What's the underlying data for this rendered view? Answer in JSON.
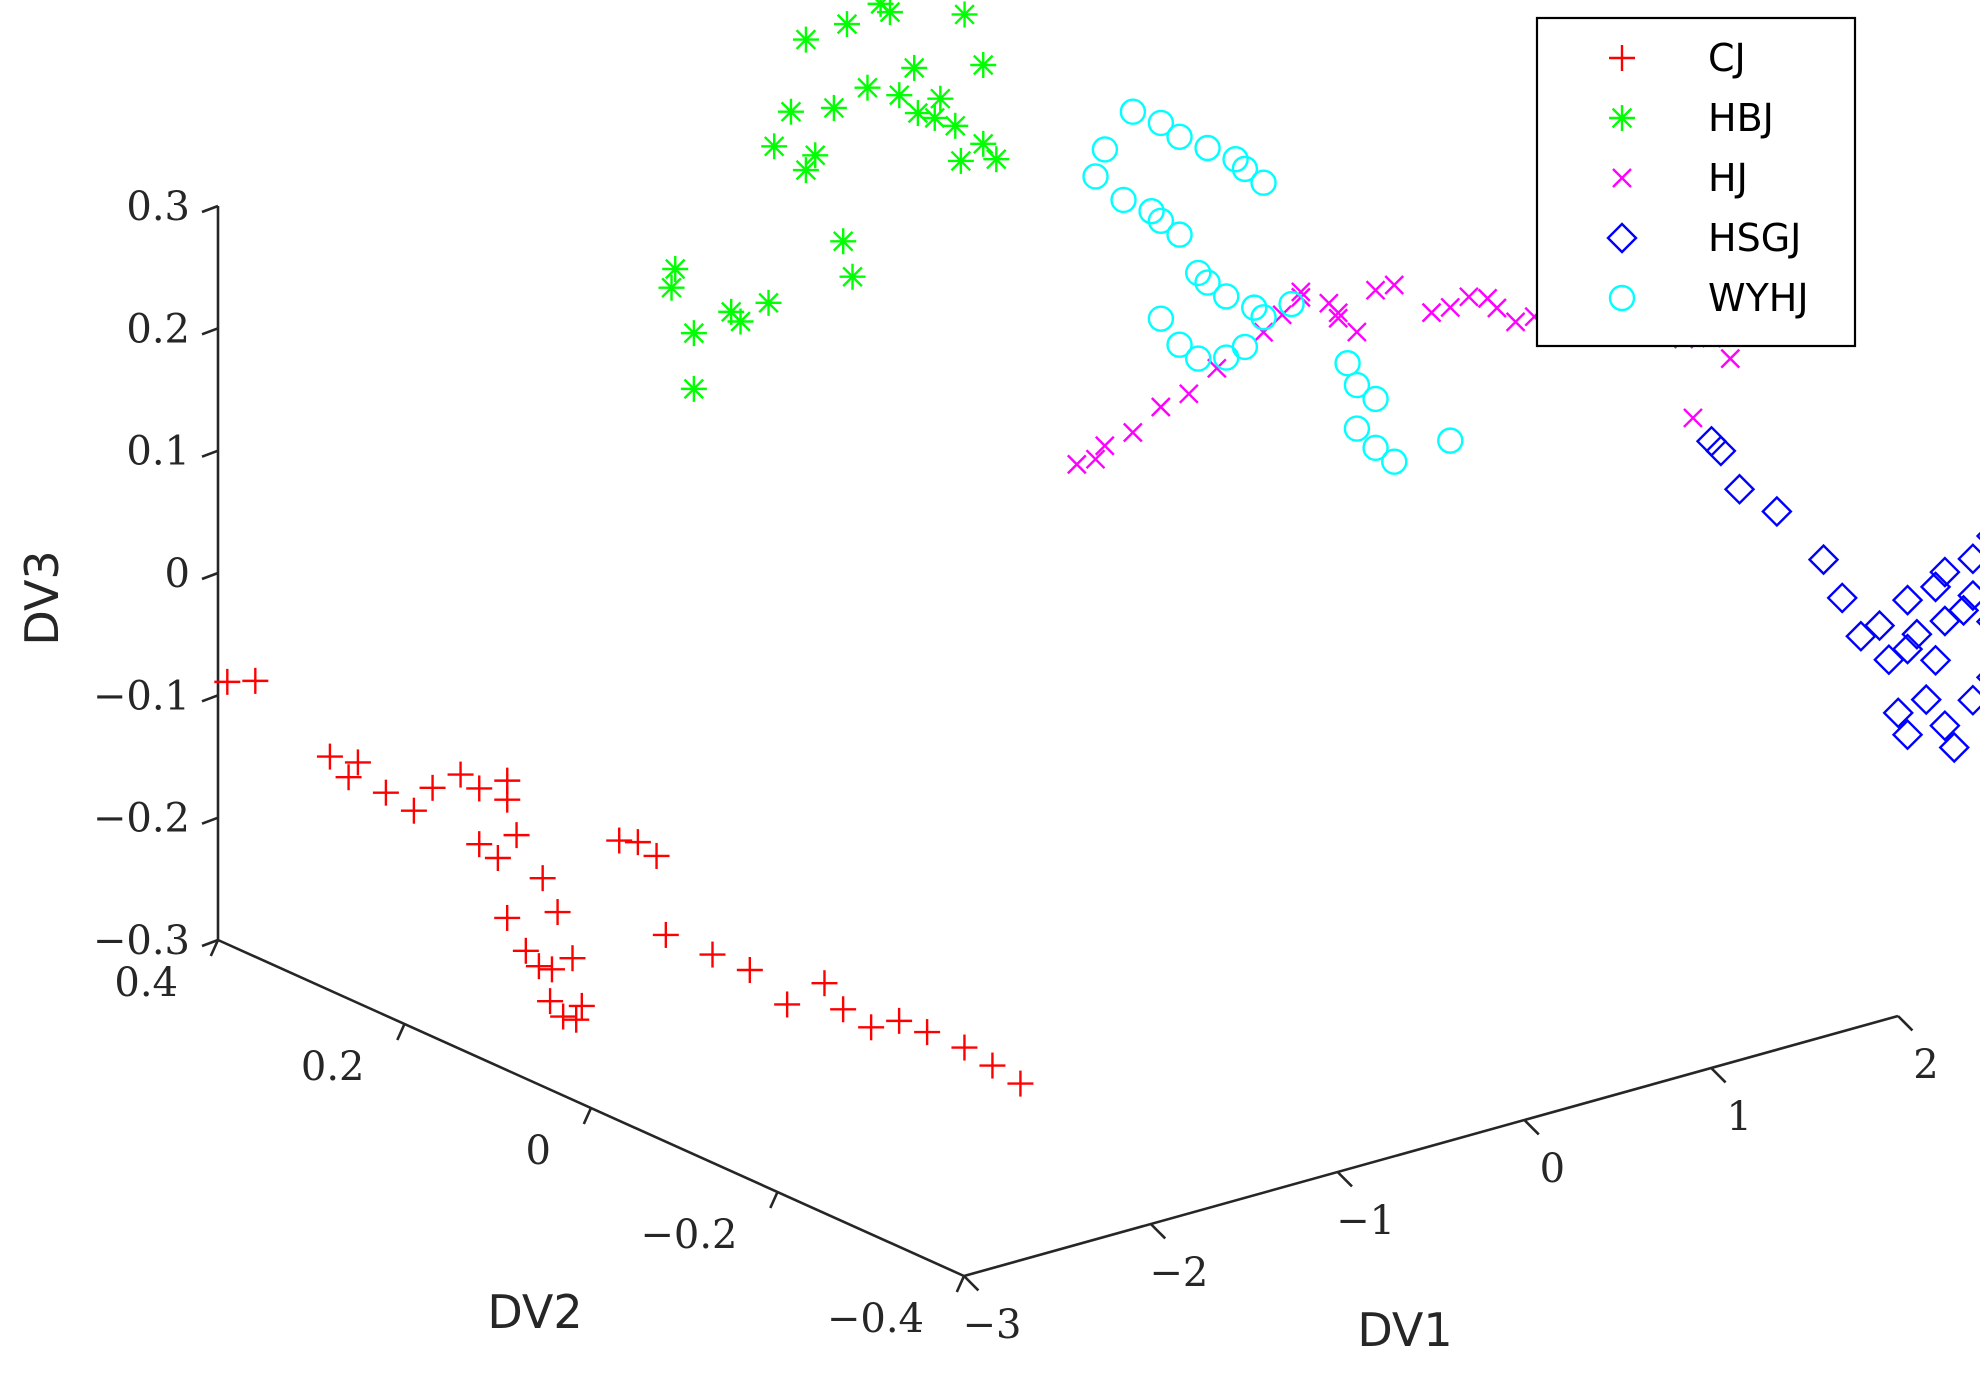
{
  "chart_data": {
    "type": "scatter3d",
    "title": "",
    "xlabel": "DV1",
    "ylabel": "DV2",
    "zlabel": "DV3",
    "xlim": [
      -3,
      2
    ],
    "ylim": [
      -0.4,
      0.4
    ],
    "zlim": [
      -0.3,
      0.3
    ],
    "x_ticks": [
      "−3",
      "−2",
      "−1",
      "0",
      "1",
      "2"
    ],
    "x_tick_values": [
      -3,
      -2,
      -1,
      0,
      1,
      2
    ],
    "y_ticks": [
      "−0.4",
      "−0.2",
      "0",
      "0.2",
      "0.4"
    ],
    "y_tick_values": [
      -0.4,
      -0.2,
      0,
      0.2,
      0.4
    ],
    "z_ticks": [
      "−0.3",
      "−0.2",
      "−0.1",
      "0",
      "0.1",
      "0.2",
      "0.3"
    ],
    "z_tick_values": [
      -0.3,
      -0.2,
      -0.1,
      0,
      0.1,
      0.2,
      0.3
    ],
    "legend_position": "top-right",
    "series": [
      {
        "name": "CJ",
        "marker": "plus",
        "color": "#ff0000",
        "points": [
          [
            -3.05,
            0.38,
            -0.08
          ],
          [
            -2.95,
            0.37,
            -0.08
          ],
          [
            -2.9,
            0.3,
            -0.12
          ],
          [
            -2.9,
            0.28,
            -0.13
          ],
          [
            -2.85,
            0.28,
            -0.12
          ],
          [
            -2.8,
            0.26,
            -0.14
          ],
          [
            -2.75,
            0.24,
            -0.15
          ],
          [
            -2.7,
            0.23,
            -0.13
          ],
          [
            -2.6,
            0.22,
            -0.12
          ],
          [
            -2.55,
            0.21,
            -0.13
          ],
          [
            -2.6,
            0.2,
            -0.17
          ],
          [
            -2.55,
            0.19,
            -0.18
          ],
          [
            -2.6,
            0.17,
            -0.22
          ],
          [
            -2.6,
            0.15,
            -0.24
          ],
          [
            -2.58,
            0.14,
            -0.25
          ],
          [
            -2.56,
            0.13,
            -0.25
          ],
          [
            -2.62,
            0.12,
            -0.27
          ],
          [
            -2.6,
            0.11,
            -0.28
          ],
          [
            -2.58,
            0.1,
            -0.28
          ],
          [
            -2.55,
            0.1,
            -0.27
          ],
          [
            -2.5,
            0.12,
            -0.24
          ],
          [
            -2.48,
            0.14,
            -0.21
          ],
          [
            -2.46,
            0.16,
            -0.19
          ],
          [
            -2.5,
            0.18,
            -0.16
          ],
          [
            -2.45,
            0.2,
            -0.14
          ],
          [
            -2.4,
            0.21,
            -0.13
          ],
          [
            -2.2,
            0.13,
            -0.16
          ],
          [
            -2.15,
            0.12,
            -0.16
          ],
          [
            -2.1,
            0.11,
            -0.17
          ],
          [
            -2.2,
            0.08,
            -0.22
          ],
          [
            -2.1,
            0.05,
            -0.23
          ],
          [
            -2.0,
            0.03,
            -0.24
          ],
          [
            -1.95,
            0.0,
            -0.26
          ],
          [
            -1.85,
            -0.02,
            -0.24
          ],
          [
            -1.8,
            -0.03,
            -0.26
          ],
          [
            -1.75,
            -0.05,
            -0.27
          ],
          [
            -1.7,
            -0.07,
            -0.26
          ],
          [
            -1.6,
            -0.08,
            -0.27
          ],
          [
            -1.5,
            -0.1,
            -0.28
          ],
          [
            -1.45,
            -0.12,
            -0.29
          ],
          [
            -1.4,
            -0.14,
            -0.3
          ]
        ]
      },
      {
        "name": "HBJ",
        "marker": "asterisk",
        "color": "#00ff00",
        "points": [
          [
            -2.05,
            0.08,
            0.22
          ],
          [
            -2.0,
            0.09,
            0.26
          ],
          [
            -1.9,
            0.07,
            0.28
          ],
          [
            -1.85,
            0.07,
            0.27
          ],
          [
            -1.8,
            0.05,
            0.29
          ],
          [
            -1.95,
            0.12,
            0.3
          ],
          [
            -1.92,
            0.13,
            0.28
          ],
          [
            -1.6,
            0.0,
            0.32
          ],
          [
            -1.55,
            0.02,
            0.34
          ],
          [
            -1.6,
            0.05,
            0.39
          ],
          [
            -1.55,
            0.05,
            0.4
          ],
          [
            -1.62,
            0.08,
            0.4
          ],
          [
            -1.58,
            0.07,
            0.43
          ],
          [
            -1.5,
            0.04,
            0.44
          ],
          [
            -1.42,
            0.02,
            0.46
          ],
          [
            -1.35,
            -0.02,
            0.45
          ],
          [
            -1.45,
            0.08,
            0.48
          ],
          [
            -1.38,
            0.05,
            0.5
          ],
          [
            -1.3,
            0.03,
            0.52
          ],
          [
            -1.48,
            0.12,
            0.53
          ],
          [
            -1.4,
            0.1,
            0.55
          ],
          [
            -1.3,
            0.07,
            0.55
          ],
          [
            -1.25,
            0.03,
            0.55
          ],
          [
            -1.2,
            0.01,
            0.55
          ],
          [
            -1.1,
            -0.02,
            0.52
          ],
          [
            -1.05,
            -0.03,
            0.48
          ],
          [
            -1.15,
            0.05,
            0.5
          ],
          [
            -1.12,
            0.03,
            0.46
          ],
          [
            -1.08,
            0.01,
            0.44
          ],
          [
            -1.05,
            0.0,
            0.42
          ],
          [
            -1.1,
            0.05,
            0.43
          ],
          [
            -1.06,
            0.02,
            0.42
          ],
          [
            -1.0,
            -0.02,
            0.41
          ],
          [
            -0.98,
            -0.03,
            0.4
          ],
          [
            -1.02,
            0.0,
            0.39
          ],
          [
            -1.3,
            0.1,
            0.6
          ],
          [
            -1.25,
            0.08,
            0.62
          ],
          [
            -1.35,
            0.11,
            0.64
          ],
          [
            -1.2,
            0.06,
            0.66
          ],
          [
            -1.32,
            0.15,
            0.7
          ],
          [
            -1.18,
            0.09,
            0.68
          ],
          [
            -1.25,
            0.12,
            0.72
          ],
          [
            -1.4,
            0.16,
            0.74
          ]
        ]
      },
      {
        "name": "HJ",
        "marker": "x",
        "color": "#ff00ff",
        "points": [
          [
            0.1,
            0.1,
            0.06
          ],
          [
            0.2,
            0.1,
            0.06
          ],
          [
            0.15,
            0.08,
            0.08
          ],
          [
            0.25,
            0.07,
            0.09
          ],
          [
            0.35,
            0.06,
            0.11
          ],
          [
            0.45,
            0.05,
            0.12
          ],
          [
            0.55,
            0.04,
            0.14
          ],
          [
            0.7,
            0.02,
            0.17
          ],
          [
            0.8,
            0.02,
            0.18
          ],
          [
            0.85,
            0.01,
            0.2
          ],
          [
            0.9,
            0.02,
            0.19
          ],
          [
            0.95,
            0.0,
            0.19
          ],
          [
            1.0,
            0.0,
            0.18
          ],
          [
            1.05,
            0.01,
            0.17
          ],
          [
            1.1,
            0.0,
            0.16
          ],
          [
            1.2,
            0.0,
            0.19
          ],
          [
            1.3,
            0.0,
            0.19
          ],
          [
            1.4,
            -0.02,
            0.17
          ],
          [
            1.5,
            -0.02,
            0.17
          ],
          [
            1.55,
            -0.03,
            0.18
          ],
          [
            1.6,
            -0.04,
            0.18
          ],
          [
            1.65,
            -0.04,
            0.17
          ],
          [
            1.7,
            -0.05,
            0.16
          ],
          [
            1.8,
            -0.05,
            0.16
          ],
          [
            1.9,
            -0.05,
            0.15
          ],
          [
            2.0,
            -0.06,
            0.15
          ],
          [
            2.1,
            -0.07,
            0.14
          ],
          [
            2.2,
            -0.08,
            0.15
          ],
          [
            2.3,
            -0.09,
            0.14
          ],
          [
            2.4,
            -0.09,
            0.13
          ],
          [
            2.5,
            -0.1,
            0.13
          ],
          [
            2.6,
            -0.11,
            0.14
          ],
          [
            2.3,
            -0.12,
            0.08
          ],
          [
            2.5,
            -0.12,
            0.12
          ]
        ]
      },
      {
        "name": "HSGJ",
        "marker": "diamond",
        "color": "#0000ff",
        "points": [
          [
            2.1,
            -0.18,
            0.09
          ],
          [
            2.15,
            -0.18,
            0.08
          ],
          [
            2.2,
            -0.19,
            0.05
          ],
          [
            2.25,
            -0.22,
            0.04
          ],
          [
            2.5,
            -0.22,
            -0.01
          ],
          [
            2.55,
            -0.23,
            -0.04
          ],
          [
            2.6,
            -0.24,
            -0.07
          ],
          [
            2.65,
            -0.25,
            -0.06
          ],
          [
            2.7,
            -0.25,
            -0.09
          ],
          [
            2.75,
            -0.26,
            -0.08
          ],
          [
            2.8,
            -0.26,
            -0.07
          ],
          [
            2.85,
            -0.27,
            -0.09
          ],
          [
            2.9,
            -0.27,
            -0.06
          ],
          [
            2.95,
            -0.28,
            -0.05
          ],
          [
            3.0,
            -0.28,
            -0.04
          ],
          [
            3.05,
            -0.29,
            -0.06
          ],
          [
            2.8,
            -0.27,
            -0.12
          ],
          [
            2.85,
            -0.28,
            -0.14
          ],
          [
            2.9,
            -0.28,
            -0.16
          ],
          [
            2.75,
            -0.26,
            -0.15
          ],
          [
            2.7,
            -0.26,
            -0.13
          ],
          [
            2.95,
            -0.29,
            -0.12
          ],
          [
            3.0,
            -0.3,
            -0.1
          ],
          [
            3.1,
            -0.3,
            -0.07
          ],
          [
            3.15,
            -0.31,
            -0.03
          ],
          [
            3.2,
            -0.31,
            -0.04
          ],
          [
            2.9,
            -0.27,
            -0.02
          ],
          [
            2.85,
            -0.27,
            -0.03
          ],
          [
            2.75,
            -0.26,
            -0.04
          ],
          [
            3.0,
            -0.28,
            -0.01
          ],
          [
            3.05,
            -0.29,
            0.01
          ]
        ]
      },
      {
        "name": "WYHJ",
        "marker": "circle",
        "color": "#00ffff",
        "points": [
          [
            0.3,
            0.12,
            0.28
          ],
          [
            0.35,
            0.12,
            0.3
          ],
          [
            0.45,
            0.11,
            0.33
          ],
          [
            0.55,
            0.1,
            0.32
          ],
          [
            0.6,
            0.09,
            0.31
          ],
          [
            0.7,
            0.08,
            0.3
          ],
          [
            0.8,
            0.07,
            0.29
          ],
          [
            0.85,
            0.07,
            0.28
          ],
          [
            0.9,
            0.06,
            0.27
          ],
          [
            0.4,
            0.11,
            0.26
          ],
          [
            0.5,
            0.1,
            0.25
          ],
          [
            0.55,
            0.1,
            0.24
          ],
          [
            0.6,
            0.09,
            0.23
          ],
          [
            0.65,
            0.08,
            0.2
          ],
          [
            0.7,
            0.08,
            0.19
          ],
          [
            0.75,
            0.07,
            0.18
          ],
          [
            0.85,
            0.06,
            0.17
          ],
          [
            0.9,
            0.06,
            0.16
          ],
          [
            1.0,
            0.05,
            0.17
          ],
          [
            0.55,
            0.1,
            0.16
          ],
          [
            0.6,
            0.09,
            0.14
          ],
          [
            0.65,
            0.08,
            0.13
          ],
          [
            0.75,
            0.07,
            0.13
          ],
          [
            0.8,
            0.06,
            0.14
          ],
          [
            1.2,
            0.03,
            0.12
          ],
          [
            1.25,
            0.03,
            0.1
          ],
          [
            1.3,
            0.02,
            0.09
          ],
          [
            1.2,
            0.02,
            0.07
          ],
          [
            1.3,
            0.02,
            0.05
          ],
          [
            1.35,
            0.01,
            0.04
          ],
          [
            1.6,
            0.0,
            0.05
          ]
        ]
      }
    ]
  }
}
